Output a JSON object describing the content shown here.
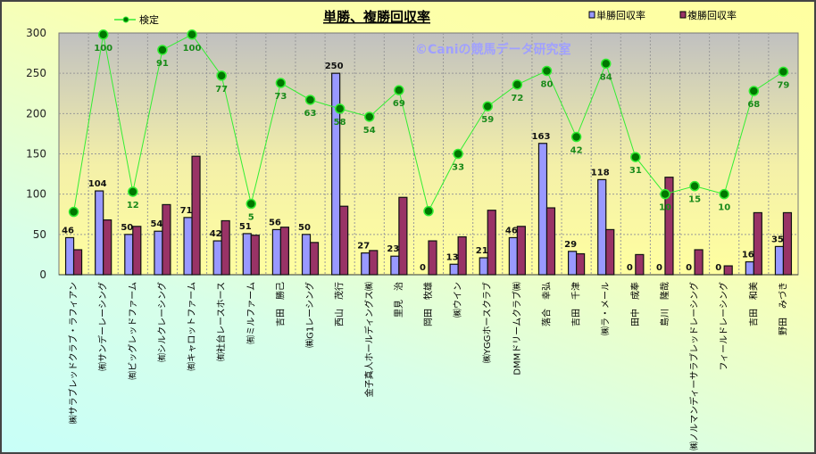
{
  "chart_data": {
    "type": "bar",
    "title": "単勝、複勝回収率",
    "watermark": "©Caniの競馬データ研究室",
    "ylim": [
      0,
      300
    ],
    "yticks": [
      0,
      50,
      100,
      150,
      200,
      250,
      300
    ],
    "grid": true,
    "legend_placement": "top",
    "categories": [
      "㈱サラブレッドクラブ・ラフィアン",
      "㈲サンデーレーシング",
      "㈲ビッグレッドファーム",
      "㈲シルクレーシング",
      "㈲キャロットファーム",
      "㈲社台レースホース",
      "㈲ミルファーム",
      "吉田　勝己",
      "㈱G1レーシング",
      "西山　茂行",
      "金子真人ホールディングス㈱",
      "里見　治",
      "岡田　牧雄",
      "㈱ウイン",
      "㈱YGGホースクラブ",
      "DMMドリームクラブ㈱",
      "落合　幸弘",
      "吉田　千津",
      "㈱ラ・メール",
      "田中　成奉",
      "島川　隆哉",
      "㈱ノルマンディーサラブレッドレーシング",
      "フィールドレーシング",
      "吉田　和美",
      "野田　みづき"
    ],
    "series": [
      {
        "name": "単勝回収率",
        "color": "#9999ff",
        "values": [
          46,
          104,
          50,
          54,
          71,
          42,
          51,
          56,
          50,
          250,
          27,
          23,
          0,
          13,
          21,
          46,
          163,
          29,
          118,
          0,
          0,
          0,
          0,
          16,
          35
        ]
      },
      {
        "name": "複勝回収率",
        "color": "#993366",
        "values": [
          31,
          68,
          60,
          87,
          147,
          67,
          49,
          59,
          40,
          85,
          30,
          96,
          42,
          47,
          80,
          60,
          83,
          26,
          56,
          25,
          121,
          31,
          11,
          77,
          77
        ]
      },
      {
        "name": "検定",
        "type": "line",
        "color": "#33ee33",
        "values": [
          78,
          298,
          103,
          279,
          298,
          247,
          88,
          238,
          217,
          206,
          196,
          229,
          79,
          150,
          209,
          236,
          253,
          171,
          262,
          146,
          100,
          110,
          100,
          228,
          252
        ],
        "labels": [
          "",
          "100",
          "12",
          "91",
          "100",
          "77",
          "5",
          "73",
          "63",
          "58",
          "54",
          "69",
          "",
          "33",
          "59",
          "72",
          "80",
          "42",
          "84",
          "31",
          "10",
          "15",
          "10",
          "68",
          "79"
        ]
      }
    ]
  }
}
